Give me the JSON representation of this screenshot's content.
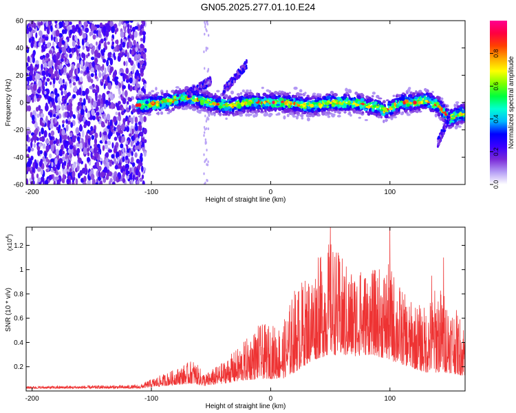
{
  "title": "GN05.2025.277.01.10.E24",
  "chart_data": [
    {
      "type": "heatmap",
      "xlabel": "Height of straight line (km)",
      "ylabel": "Frequency (Hz)",
      "xlim": [
        -205,
        163
      ],
      "ylim": [
        -60,
        60
      ],
      "xticks": [
        -200,
        -100,
        0,
        100
      ],
      "yticks": [
        -60,
        -40,
        -20,
        0,
        20,
        40,
        60
      ],
      "colorbar": {
        "label": "Normalized spectral amplitude",
        "ticks": [
          0.0,
          0.2,
          0.4,
          0.6,
          0.8
        ],
        "range": [
          0,
          1
        ],
        "colors": [
          "#ffffff",
          "#b49cf5",
          "#7a2ad8",
          "#3a00ff",
          "#0000ff",
          "#00b7ff",
          "#00ffd2",
          "#00ff3c",
          "#7dff00",
          "#ffff00",
          "#ffa800",
          "#ff4000",
          "#ff0040",
          "#ff0090"
        ]
      },
      "ridge": [
        {
          "x": -110,
          "f": -2
        },
        {
          "x": -100,
          "f": -1
        },
        {
          "x": -90,
          "f": 0
        },
        {
          "x": -80,
          "f": 2
        },
        {
          "x": -70,
          "f": 4
        },
        {
          "x": -60,
          "f": 2
        },
        {
          "x": -50,
          "f": 0
        },
        {
          "x": -40,
          "f": -2
        },
        {
          "x": -30,
          "f": -2
        },
        {
          "x": -20,
          "f": 0
        },
        {
          "x": -10,
          "f": 0
        },
        {
          "x": 0,
          "f": 0
        },
        {
          "x": 10,
          "f": 0
        },
        {
          "x": 20,
          "f": -1
        },
        {
          "x": 30,
          "f": -2
        },
        {
          "x": 40,
          "f": -2
        },
        {
          "x": 50,
          "f": 0
        },
        {
          "x": 60,
          "f": 0
        },
        {
          "x": 70,
          "f": 0
        },
        {
          "x": 80,
          "f": -2
        },
        {
          "x": 90,
          "f": -3
        },
        {
          "x": 95,
          "f": -6
        },
        {
          "x": 100,
          "f": -4
        },
        {
          "x": 110,
          "f": 0
        },
        {
          "x": 120,
          "f": 0
        },
        {
          "x": 130,
          "f": 2
        },
        {
          "x": 140,
          "f": -2
        },
        {
          "x": 150,
          "f": -12
        },
        {
          "x": 160,
          "f": -8
        }
      ],
      "branches": [
        {
          "x": [
            -70,
            -50
          ],
          "f": [
            6,
            16
          ]
        },
        {
          "x": [
            -40,
            -20
          ],
          "f": [
            8,
            28
          ]
        },
        {
          "x": [
            140,
            150
          ],
          "f": [
            -30,
            -10
          ]
        }
      ]
    },
    {
      "type": "line",
      "xlabel": "Height of straight line (km)",
      "ylabel": "SNR (10 * v/v)",
      "y_multiplier": "(x10",
      "y_multiplier_exp": "4",
      "y_multiplier_close": ")",
      "xlim": [
        -205,
        163
      ],
      "ylim": [
        0,
        1.35
      ],
      "xticks": [
        -200,
        -100,
        0,
        100
      ],
      "yticks": [
        0.2,
        0.4,
        0.6,
        0.8,
        1.0,
        1.2
      ],
      "color": "#ee3333",
      "envelope": [
        {
          "x": -205,
          "base": 0.02,
          "amp": 0.02
        },
        {
          "x": -110,
          "base": 0.02,
          "amp": 0.03
        },
        {
          "x": -100,
          "base": 0.03,
          "amp": 0.07
        },
        {
          "x": -80,
          "base": 0.05,
          "amp": 0.13
        },
        {
          "x": -65,
          "base": 0.06,
          "amp": 0.2
        },
        {
          "x": -55,
          "base": 0.04,
          "amp": 0.1
        },
        {
          "x": -40,
          "base": 0.06,
          "amp": 0.18
        },
        {
          "x": -25,
          "base": 0.08,
          "amp": 0.3
        },
        {
          "x": -10,
          "base": 0.1,
          "amp": 0.45
        },
        {
          "x": 10,
          "base": 0.1,
          "amp": 0.45
        },
        {
          "x": 20,
          "base": 0.15,
          "amp": 0.7
        },
        {
          "x": 35,
          "base": 0.25,
          "amp": 0.75
        },
        {
          "x": 50,
          "base": 0.3,
          "amp": 0.95
        },
        {
          "x": 65,
          "base": 0.28,
          "amp": 0.75
        },
        {
          "x": 85,
          "base": 0.3,
          "amp": 0.7
        },
        {
          "x": 100,
          "base": 0.25,
          "amp": 0.8
        },
        {
          "x": 115,
          "base": 0.2,
          "amp": 0.55
        },
        {
          "x": 130,
          "base": 0.15,
          "amp": 0.55
        },
        {
          "x": 140,
          "base": 0.15,
          "amp": 0.75
        },
        {
          "x": 150,
          "base": 0.15,
          "amp": 0.6
        },
        {
          "x": 163,
          "base": 0.12,
          "amp": 0.45
        }
      ],
      "peaks": [
        {
          "x": 50,
          "y": 1.35
        },
        {
          "x": 100,
          "y": 1.35
        },
        {
          "x": 75,
          "y": 0.95
        },
        {
          "x": 40,
          "y": 1.1
        },
        {
          "x": 145,
          "y": 1.1
        },
        {
          "x": 135,
          "y": 0.95
        }
      ]
    }
  ]
}
